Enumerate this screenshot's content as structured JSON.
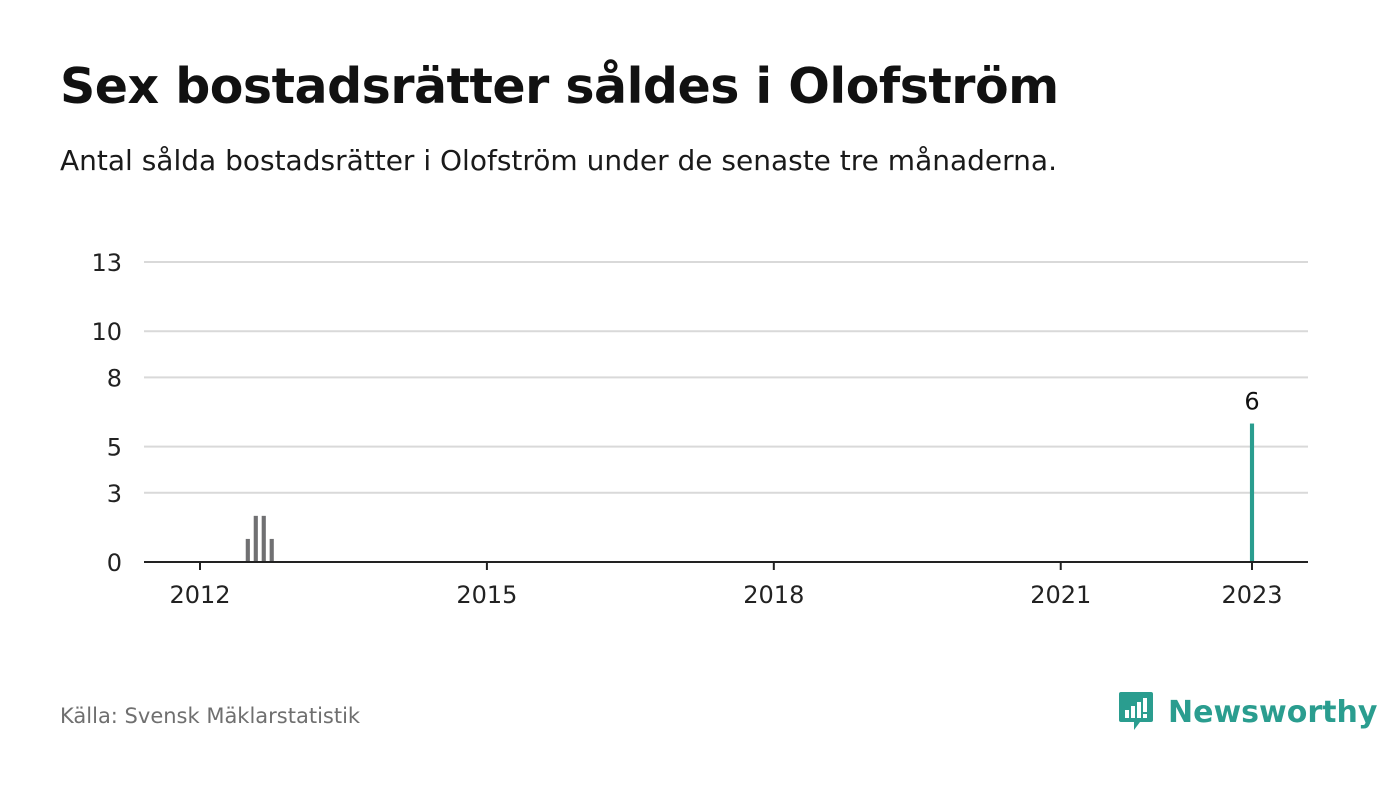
{
  "title": "Sex bostadsrätter såldes i Olofström",
  "subtitle": "Antal sålda bostadsrätter i Olofström under de senaste tre månaderna.",
  "source": "Källa: Svensk Mäklarstatistik",
  "brand": {
    "name": "Newsworthy",
    "icon": "newsworthy-logo-icon",
    "color": "#2a9d8f"
  },
  "colors": {
    "bar": "#707072",
    "highlight": "#2a9d8f",
    "grid": "#d9d9d9",
    "axis": "#222222",
    "tick": "#222222"
  },
  "chart_data": {
    "type": "bar",
    "xlabel": "",
    "ylabel": "",
    "ylim": [
      0,
      13
    ],
    "yticks": [
      0,
      3,
      5,
      8,
      10,
      13
    ],
    "xtick_labels": [
      "2012",
      "2015",
      "2018",
      "2021",
      "2023"
    ],
    "grid": true,
    "start": "2012-01",
    "end": "2023-01",
    "values": [
      0,
      0,
      0,
      0,
      0,
      0,
      1,
      2,
      2,
      1,
      0,
      0,
      0,
      0,
      0,
      0,
      0,
      0,
      0,
      0,
      0,
      0,
      0,
      0,
      0,
      0,
      0,
      0,
      0,
      0,
      0,
      0,
      0,
      0,
      0,
      0,
      0,
      0,
      0,
      0,
      0,
      0,
      0,
      0,
      0,
      0,
      0,
      0,
      0,
      0,
      0,
      0,
      0,
      0,
      0,
      0,
      0,
      0,
      0,
      0,
      0,
      0,
      0,
      0,
      0,
      0,
      0,
      0,
      0,
      0,
      0,
      0,
      0,
      0,
      0,
      0,
      0,
      0,
      0,
      0,
      0,
      0,
      0,
      0,
      0,
      0,
      0,
      0,
      0,
      0,
      0,
      0,
      0,
      0,
      0,
      0,
      0,
      0,
      0,
      0,
      0,
      0,
      0,
      0,
      0,
      0,
      0,
      0,
      0,
      0,
      0,
      0,
      0,
      0,
      0,
      0,
      0,
      0,
      0,
      0,
      0,
      0,
      0,
      0,
      0,
      0,
      0,
      0,
      0,
      0,
      0,
      0,
      6
    ]
  },
  "last_label": "6"
}
